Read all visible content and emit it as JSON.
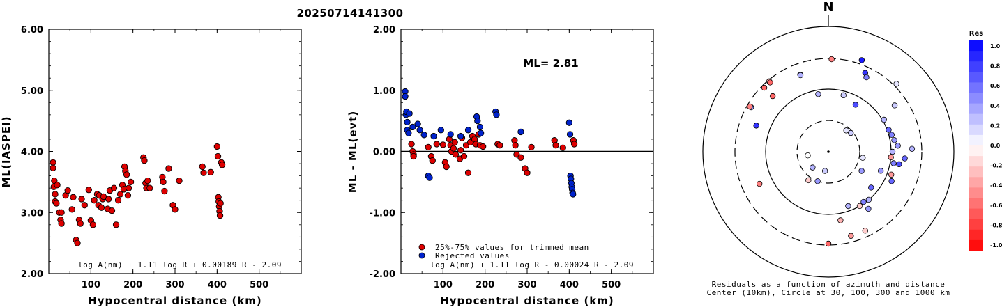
{
  "title": "20250714141300",
  "chart_data": [
    {
      "type": "scatter",
      "ylabel": "ML(IASPEI)",
      "xlabel": "Hypocentral distance (km)",
      "xlim": [
        0,
        600
      ],
      "ylim": [
        2.0,
        6.0
      ],
      "xticks": [
        "100",
        "200",
        "300",
        "400",
        "500"
      ],
      "yticks": [
        "2.00",
        "3.00",
        "4.00",
        "5.00",
        "6.00"
      ],
      "formula": "log A(nm) + 1.11 log R + 0.00189 R - 2.09",
      "color": "#dd0000",
      "points": [
        [
          10,
          3.82
        ],
        [
          10,
          3.73
        ],
        [
          12,
          3.42
        ],
        [
          13,
          3.52
        ],
        [
          15,
          3.3
        ],
        [
          15,
          3.18
        ],
        [
          18,
          3.15
        ],
        [
          20,
          3.45
        ],
        [
          25,
          3.0
        ],
        [
          28,
          2.88
        ],
        [
          30,
          2.82
        ],
        [
          30,
          3.0
        ],
        [
          40,
          3.28
        ],
        [
          45,
          3.36
        ],
        [
          55,
          3.05
        ],
        [
          58,
          3.25
        ],
        [
          65,
          2.55
        ],
        [
          68,
          2.5
        ],
        [
          72,
          2.88
        ],
        [
          75,
          2.82
        ],
        [
          78,
          3.22
        ],
        [
          85,
          3.12
        ],
        [
          95,
          3.37
        ],
        [
          100,
          2.87
        ],
        [
          105,
          2.8
        ],
        [
          108,
          3.2
        ],
        [
          115,
          3.3
        ],
        [
          118,
          3.12
        ],
        [
          120,
          3.28
        ],
        [
          125,
          3.08
        ],
        [
          128,
          3.22
        ],
        [
          130,
          3.26
        ],
        [
          140,
          3.06
        ],
        [
          142,
          3.22
        ],
        [
          145,
          3.36
        ],
        [
          150,
          3.03
        ],
        [
          155,
          3.4
        ],
        [
          160,
          2.8
        ],
        [
          165,
          3.2
        ],
        [
          170,
          3.3
        ],
        [
          175,
          3.45
        ],
        [
          178,
          3.38
        ],
        [
          180,
          3.75
        ],
        [
          182,
          3.68
        ],
        [
          185,
          3.62
        ],
        [
          188,
          3.28
        ],
        [
          190,
          3.4
        ],
        [
          195,
          3.5
        ],
        [
          225,
          3.9
        ],
        [
          227,
          3.85
        ],
        [
          230,
          3.48
        ],
        [
          232,
          3.4
        ],
        [
          235,
          3.52
        ],
        [
          240,
          3.4
        ],
        [
          270,
          3.58
        ],
        [
          272,
          3.5
        ],
        [
          275,
          3.35
        ],
        [
          285,
          3.72
        ],
        [
          295,
          3.12
        ],
        [
          300,
          3.05
        ],
        [
          310,
          3.52
        ],
        [
          365,
          3.75
        ],
        [
          368,
          3.65
        ],
        [
          385,
          3.66
        ],
        [
          400,
          4.08
        ],
        [
          402,
          3.92
        ],
        [
          403,
          3.25
        ],
        [
          404,
          3.18
        ],
        [
          405,
          3.1
        ],
        [
          406,
          3.02
        ],
        [
          407,
          2.95
        ],
        [
          408,
          3.15
        ],
        [
          410,
          3.82
        ],
        [
          412,
          3.78
        ]
      ]
    },
    {
      "type": "scatter",
      "ylabel": "ML - ML(evt)",
      "xlabel": "Hypocentral distance (km)",
      "xlim": [
        0,
        600
      ],
      "ylim": [
        -2.0,
        2.0
      ],
      "xticks": [
        "100",
        "200",
        "300",
        "400",
        "500"
      ],
      "yticks": [
        "-2.00",
        "-1.00",
        "0.00",
        "1.00",
        "2.00"
      ],
      "annotation": "ML= 2.81",
      "formula": "log A(nm) + 1.11 log R - 0.00024 R - 2.09",
      "legend": [
        {
          "label": "25%-75% values for trimmed mean",
          "color": "#dd0000"
        },
        {
          "label": "Rejected values",
          "color": "#0022cc"
        }
      ],
      "series": [
        {
          "name": "25%-75% values for trimmed mean",
          "color": "#dd0000",
          "points": [
            [
              25,
              0.12
            ],
            [
              28,
              0.0
            ],
            [
              30,
              -0.05
            ],
            [
              30,
              -0.08
            ],
            [
              65,
              0.07
            ],
            [
              72,
              -0.08
            ],
            [
              75,
              -0.15
            ],
            [
              85,
              0.12
            ],
            [
              100,
              0.11
            ],
            [
              105,
              -0.18
            ],
            [
              108,
              -0.25
            ],
            [
              115,
              0.2
            ],
            [
              118,
              0.1
            ],
            [
              120,
              0.0
            ],
            [
              125,
              0.05
            ],
            [
              128,
              0.15
            ],
            [
              130,
              -0.05
            ],
            [
              140,
              -0.12
            ],
            [
              142,
              0.02
            ],
            [
              145,
              0.22
            ],
            [
              150,
              -0.08
            ],
            [
              155,
              0.1
            ],
            [
              160,
              -0.35
            ],
            [
              165,
              0.15
            ],
            [
              170,
              0.25
            ],
            [
              175,
              0.2
            ],
            [
              178,
              0.12
            ],
            [
              185,
              0.28
            ],
            [
              188,
              0.1
            ],
            [
              195,
              0.08
            ],
            [
              230,
              0.12
            ],
            [
              235,
              0.1
            ],
            [
              270,
              0.18
            ],
            [
              272,
              0.1
            ],
            [
              275,
              -0.05
            ],
            [
              285,
              -0.1
            ],
            [
              295,
              -0.28
            ],
            [
              300,
              -0.35
            ],
            [
              310,
              0.07
            ],
            [
              365,
              0.18
            ],
            [
              368,
              0.1
            ],
            [
              385,
              0.06
            ],
            [
              410,
              0.18
            ],
            [
              412,
              0.12
            ]
          ]
        },
        {
          "name": "Rejected values",
          "color": "#0022cc",
          "points": [
            [
              10,
              0.98
            ],
            [
              10,
              0.9
            ],
            [
              12,
              0.6
            ],
            [
              13,
              0.65
            ],
            [
              15,
              0.48
            ],
            [
              15,
              0.35
            ],
            [
              18,
              0.3
            ],
            [
              20,
              0.62
            ],
            [
              28,
              0.4
            ],
            [
              40,
              0.45
            ],
            [
              45,
              0.35
            ],
            [
              55,
              0.27
            ],
            [
              65,
              -0.4
            ],
            [
              68,
              -0.43
            ],
            [
              78,
              0.25
            ],
            [
              95,
              0.35
            ],
            [
              118,
              0.28
            ],
            [
              142,
              0.25
            ],
            [
              160,
              0.35
            ],
            [
              180,
              0.57
            ],
            [
              182,
              0.5
            ],
            [
              188,
              0.4
            ],
            [
              190,
              0.3
            ],
            [
              225,
              0.65
            ],
            [
              227,
              0.6
            ],
            [
              285,
              0.32
            ],
            [
              400,
              0.47
            ],
            [
              402,
              0.28
            ],
            [
              403,
              -0.4
            ],
            [
              404,
              -0.45
            ],
            [
              405,
              -0.52
            ],
            [
              406,
              -0.58
            ],
            [
              407,
              -0.62
            ],
            [
              408,
              -0.68
            ],
            [
              409,
              -0.7
            ]
          ]
        }
      ]
    },
    {
      "type": "polar-scatter",
      "north_label": "N",
      "caption_line1": "Residuals as a function of azimuth and distance",
      "caption_line2": "Center (10km), Circle at 30, 100, 300 and 1000 km",
      "colorbar_title": "Res",
      "colorbar_ticks": [
        "1.0",
        "0.8",
        "0.6",
        "0.4",
        "0.2",
        "0.0",
        "-0.2",
        "-0.4",
        "-0.6",
        "-0.8",
        "-1.0"
      ],
      "points": [
        [
          2,
          -0.5
        ],
        [
          20,
          0.9
        ],
        [
          340,
          0.2
        ],
        [
          350,
          0.3
        ],
        [
          15,
          0.2
        ],
        [
          340,
          0.3
        ],
        [
          320,
          -0.3
        ],
        [
          300,
          0.4
        ],
        [
          290,
          0.8
        ],
        [
          40,
          0.1
        ],
        [
          50,
          0.2
        ],
        [
          315,
          -0.6
        ],
        [
          245,
          -0.5
        ],
        [
          260,
          0.0
        ],
        [
          225,
          0.3
        ],
        [
          200,
          0.4
        ],
        [
          190,
          0.2
        ],
        [
          215,
          -0.2
        ],
        [
          145,
          0.5
        ],
        [
          160,
          0.3
        ],
        [
          180,
          -0.6
        ],
        [
          170,
          -0.3
        ],
        [
          150,
          -0.2
        ],
        [
          110,
          -0.4
        ],
        [
          100,
          0.5
        ],
        [
          90,
          0.3
        ],
        [
          70,
          0.6
        ],
        [
          60,
          0.3
        ],
        [
          30,
          0.7
        ],
        [
          25,
          0.8
        ],
        [
          27,
          0.5
        ],
        [
          45,
          0.1
        ],
        [
          55,
          0.2
        ],
        [
          75,
          0.5
        ],
        [
          80,
          0.4
        ],
        [
          85,
          0.4
        ],
        [
          88,
          0.3
        ],
        [
          95,
          0.6
        ],
        [
          100,
          0.7
        ],
        [
          115,
          0.6
        ],
        [
          120,
          0.4
        ],
        [
          130,
          0.6
        ],
        [
          140,
          0.3
        ],
        [
          145,
          0.4
        ],
        [
          155,
          -0.2
        ],
        [
          165,
          -0.4
        ],
        [
          100,
          0.1
        ],
        [
          110,
          0.4
        ],
        [
          95,
          -0.4
        ],
        [
          300,
          -0.5
        ],
        [
          315,
          -0.6
        ],
        [
          320,
          -0.6
        ]
      ]
    }
  ]
}
